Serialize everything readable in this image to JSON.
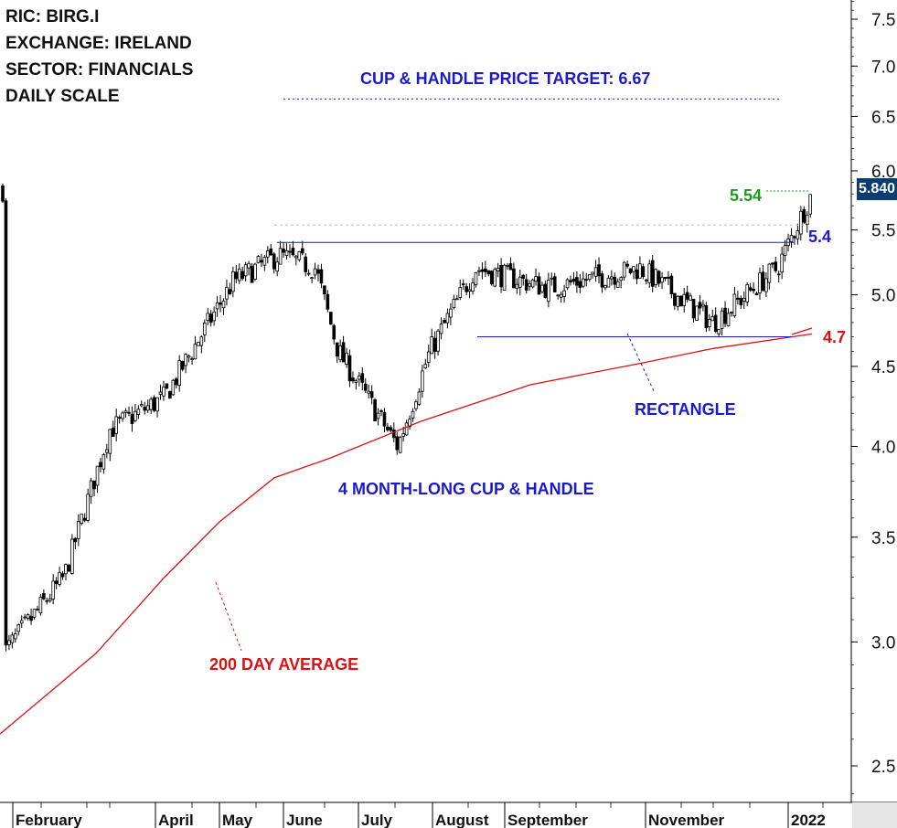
{
  "info": {
    "ric": "RIC: BIRG.I",
    "exchange": "EXCHANGE: IRELAND",
    "sector": "SECTOR: FINANCIALS",
    "scale": "DAILY SCALE"
  },
  "annotations": {
    "target_label": "CUP & HANDLE PRICE TARGET: 6.67",
    "cup_label": "4 MONTH-LONG CUP & HANDLE",
    "rectangle_label": "RECTANGLE",
    "ma_label": "200 DAY AVERAGE",
    "level_554": "5.54",
    "level_54": "5.4",
    "level_47": "4.7",
    "last_price": "5.840"
  },
  "colors": {
    "blue": "#1a1acc",
    "red": "#dd1111",
    "green": "#1f9a1f",
    "tag": "#0a3d72",
    "candle": "#000000"
  },
  "chart_data": {
    "type": "candlestick",
    "y_scale": "log",
    "ylim": [
      2.33,
      7.75
    ],
    "y_ticks": [
      "2.5",
      "3.0",
      "3.5",
      "4.0",
      "4.5",
      "5.0",
      "5.5",
      "6.0",
      "6.5",
      "7.0",
      "7.5"
    ],
    "x_ticks": [
      "February",
      "April",
      "May",
      "June",
      "July",
      "August",
      "September",
      "November",
      "2022"
    ],
    "price_path": [
      [
        "Jan",
        2.95
      ],
      [
        "Feb",
        3.3
      ],
      [
        "Mar",
        4.1
      ],
      [
        "Apr",
        4.3
      ],
      [
        "May",
        5.1
      ],
      [
        "Late May",
        5.3
      ],
      [
        "Jun",
        5.2
      ],
      [
        "Early Jul",
        4.6
      ],
      [
        "Late Jul",
        4.0
      ],
      [
        "Early Aug",
        4.6
      ],
      [
        "Aug",
        5.2
      ],
      [
        "Sep",
        5.05
      ],
      [
        "Oct",
        5.2
      ],
      [
        "Nov",
        4.8
      ],
      [
        "Dec",
        5.2
      ],
      [
        "Jan 2022",
        5.84
      ]
    ],
    "moving_average_200": [
      [
        "Jan",
        2.62
      ],
      [
        "Mar",
        2.95
      ],
      [
        "Apr",
        3.3
      ],
      [
        "May",
        3.58
      ],
      [
        "Jun",
        3.82
      ],
      [
        "Jul",
        3.93
      ],
      [
        "Aug",
        4.15
      ],
      [
        "Sep",
        4.38
      ],
      [
        "Oct",
        4.52
      ],
      [
        "Nov",
        4.62
      ],
      [
        "Jan 2022",
        4.72
      ]
    ],
    "levels": {
      "price_target": 6.67,
      "cup_resistance": 5.4,
      "recent_high": 5.54,
      "rectangle_support": 4.7,
      "last_close": 5.84
    }
  }
}
